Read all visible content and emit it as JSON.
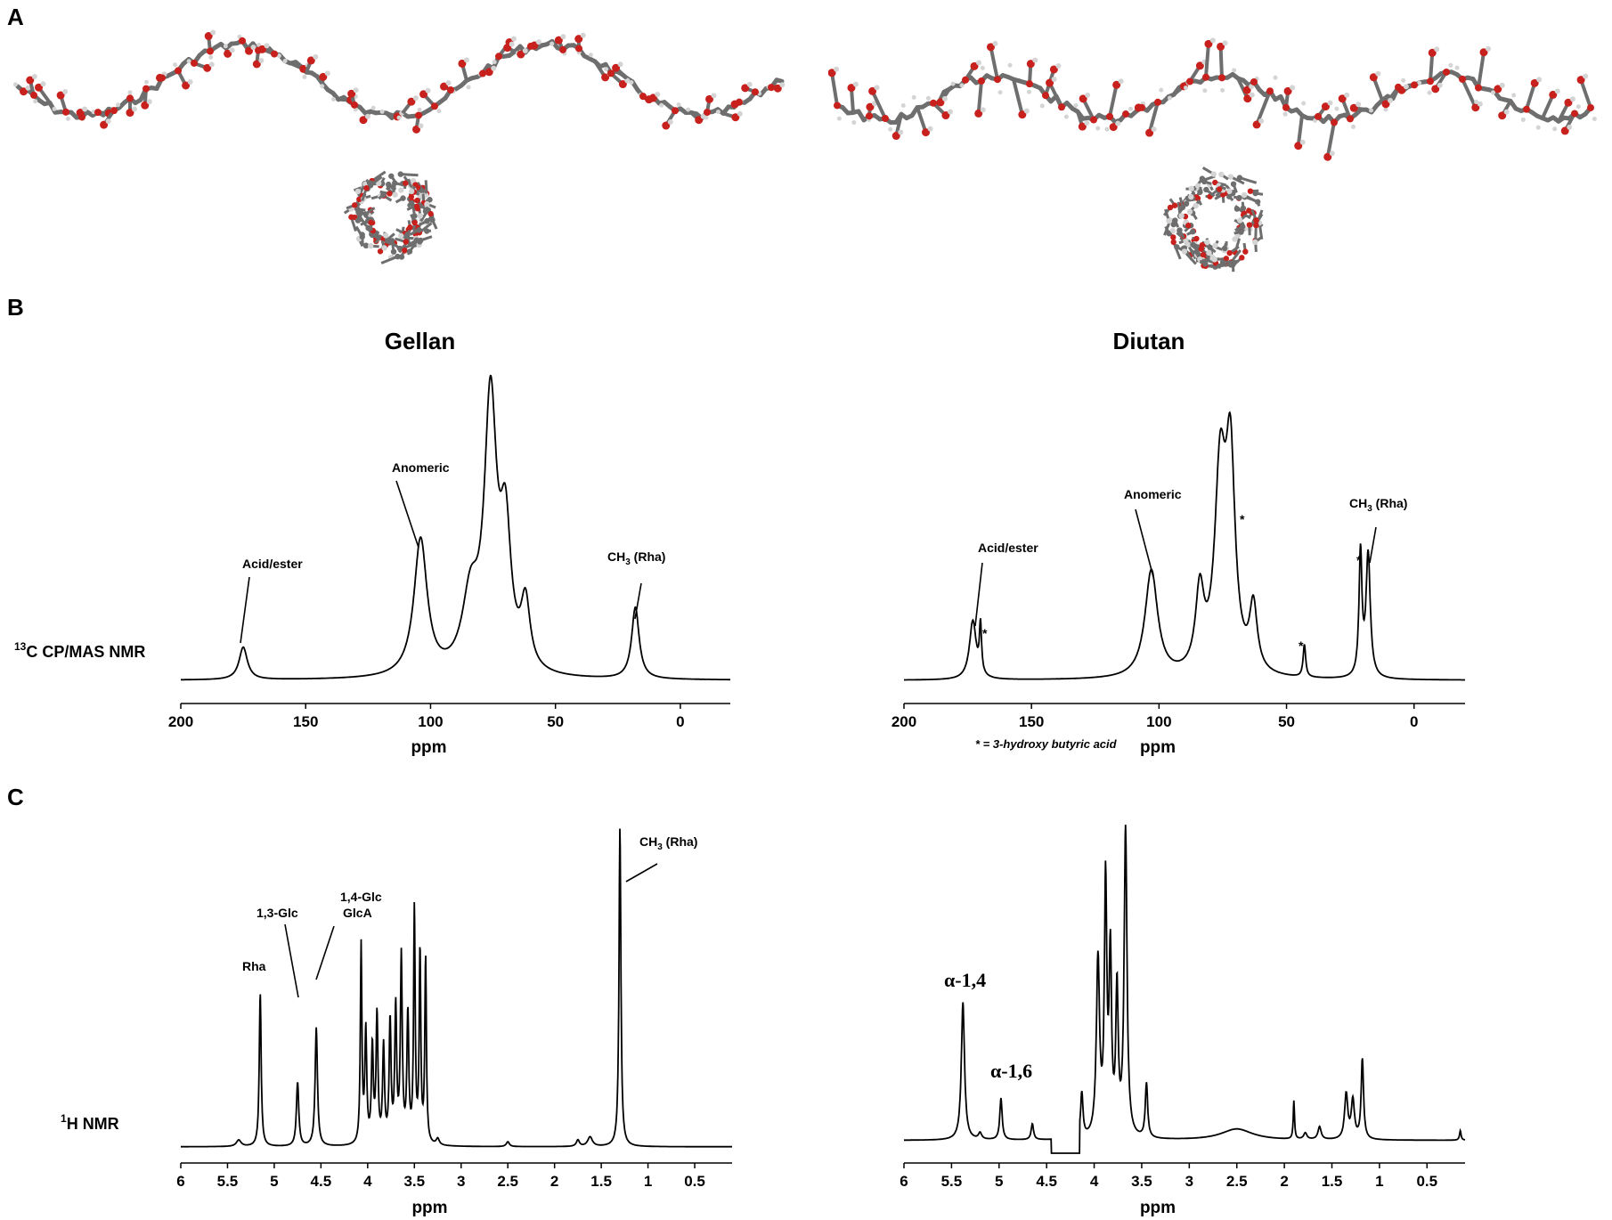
{
  "panels": {
    "a": "A",
    "b": "B",
    "c": "C"
  },
  "colors": {
    "line": "#000000",
    "oxygen": "#c8201c",
    "carbon": "#6e6e6e",
    "hydrogen": "#d4d4d4"
  },
  "chart_data": [
    {
      "id": "gellan-13c",
      "type": "line",
      "title": "Gellan",
      "row_label": "C CP/MAS NMR",
      "row_label_sup": "13",
      "xlabel": "ppm",
      "xlim": [
        200,
        -20
      ],
      "x_reversed": true,
      "ticks": [
        200,
        150,
        100,
        50,
        0
      ],
      "tick_labels": [
        "200",
        "150",
        "100",
        "50",
        "0"
      ],
      "grid": false,
      "baseline": 0.03,
      "peaks": [
        {
          "x": 175,
          "h": 0.1,
          "w": 2.0
        },
        {
          "x": 104,
          "h": 0.42,
          "w": 3.2
        },
        {
          "x": 84,
          "h": 0.22,
          "w": 4.0
        },
        {
          "x": 76,
          "h": 0.82,
          "w": 3.0
        },
        {
          "x": 70,
          "h": 0.4,
          "w": 2.6
        },
        {
          "x": 62,
          "h": 0.2,
          "w": 2.2
        },
        {
          "x": 18,
          "h": 0.22,
          "w": 1.8
        }
      ],
      "annotations": [
        {
          "text": "Anomeric",
          "peak_x": 104
        },
        {
          "text": "Acid/ester",
          "peak_x": 175
        },
        {
          "text": "CH",
          "sub": "3",
          "suffix": " (Rha)",
          "peak_x": 18
        }
      ]
    },
    {
      "id": "diutan-13c",
      "type": "line",
      "title": "Diutan",
      "xlabel": "ppm",
      "xlim": [
        200,
        -20
      ],
      "x_reversed": true,
      "ticks": [
        200,
        150,
        100,
        50,
        0
      ],
      "tick_labels": [
        "200",
        "150",
        "100",
        "50",
        "0"
      ],
      "grid": false,
      "baseline": 0.03,
      "footnote": "* = 3-hydroxy butyric acid",
      "peaks": [
        {
          "x": 173,
          "h": 0.18,
          "w": 1.6
        },
        {
          "x": 170,
          "h": 0.15,
          "w": 0.5
        },
        {
          "x": 103,
          "h": 0.33,
          "w": 3.0
        },
        {
          "x": 84,
          "h": 0.24,
          "w": 2.0
        },
        {
          "x": 76,
          "h": 0.6,
          "w": 2.6
        },
        {
          "x": 72,
          "h": 0.62,
          "w": 2.2
        },
        {
          "x": 63,
          "h": 0.2,
          "w": 1.8
        },
        {
          "x": 43,
          "h": 0.1,
          "w": 0.6
        },
        {
          "x": 21,
          "h": 0.38,
          "w": 0.7
        },
        {
          "x": 18,
          "h": 0.38,
          "w": 1.0
        }
      ],
      "annotations": [
        {
          "text": "Anomeric",
          "peak_x": 103
        },
        {
          "text": "Acid/ester",
          "peak_x": 173
        },
        {
          "text": "CH",
          "sub": "3",
          "suffix": " (Rha)",
          "peak_x": 18
        },
        {
          "text": "*",
          "peak_x": 170
        },
        {
          "text": "*",
          "peak_x": 69
        },
        {
          "text": "*",
          "peak_x": 43
        },
        {
          "text": "*",
          "peak_x": 21
        }
      ]
    },
    {
      "id": "gellan-1h",
      "type": "line",
      "row_label": "H NMR",
      "row_label_sup": "1",
      "xlabel": "ppm",
      "xlim": [
        6,
        0.1
      ],
      "x_reversed": true,
      "ticks": [
        6,
        5.5,
        5,
        4.5,
        4,
        3.5,
        3,
        2.5,
        2,
        1.5,
        1,
        0.5
      ],
      "tick_labels": [
        "6",
        "5.5",
        "5",
        "4.5",
        "4",
        "3.5",
        "3",
        "2.5",
        "2",
        "1.5",
        "1",
        "0.5"
      ],
      "grid": false,
      "baseline": 0.02,
      "peaks": [
        {
          "x": 5.38,
          "h": 0.02,
          "w": 0.03
        },
        {
          "x": 5.15,
          "h": 0.48,
          "w": 0.012
        },
        {
          "x": 4.75,
          "h": 0.2,
          "w": 0.015
        },
        {
          "x": 4.55,
          "h": 0.37,
          "w": 0.015
        },
        {
          "x": 4.07,
          "h": 0.62,
          "w": 0.01
        },
        {
          "x": 4.02,
          "h": 0.35,
          "w": 0.012
        },
        {
          "x": 3.95,
          "h": 0.3,
          "w": 0.012
        },
        {
          "x": 3.9,
          "h": 0.4,
          "w": 0.012
        },
        {
          "x": 3.83,
          "h": 0.3,
          "w": 0.012
        },
        {
          "x": 3.76,
          "h": 0.38,
          "w": 0.012
        },
        {
          "x": 3.7,
          "h": 0.42,
          "w": 0.012
        },
        {
          "x": 3.64,
          "h": 0.58,
          "w": 0.012
        },
        {
          "x": 3.57,
          "h": 0.4,
          "w": 0.012
        },
        {
          "x": 3.5,
          "h": 0.73,
          "w": 0.01
        },
        {
          "x": 3.44,
          "h": 0.6,
          "w": 0.01
        },
        {
          "x": 3.38,
          "h": 0.58,
          "w": 0.01
        },
        {
          "x": 3.25,
          "h": 0.02,
          "w": 0.02
        },
        {
          "x": 2.5,
          "h": 0.015,
          "w": 0.02
        },
        {
          "x": 1.75,
          "h": 0.02,
          "w": 0.02
        },
        {
          "x": 1.62,
          "h": 0.03,
          "w": 0.03
        },
        {
          "x": 1.3,
          "h": 1.0,
          "w": 0.012
        }
      ],
      "annotations": [
        {
          "text": "Rha",
          "peak_x": 5.15
        },
        {
          "text": "1,3-Glc",
          "peak_x": 4.75
        },
        {
          "text": "1,4-Glc",
          "peak_x": 4.55
        },
        {
          "text": "GlcA",
          "peak_x": 4.55
        },
        {
          "text": "CH",
          "sub": "3",
          "suffix": " (Rha)",
          "peak_x": 1.3
        }
      ]
    },
    {
      "id": "diutan-1h",
      "type": "line",
      "xlabel": "ppm",
      "xlim": [
        6,
        0.1
      ],
      "x_reversed": true,
      "ticks": [
        6,
        5.5,
        5,
        4.5,
        4,
        3.5,
        3,
        2.5,
        2,
        1.5,
        1,
        0.5
      ],
      "tick_labels": [
        "6",
        "5.5",
        "5",
        "4.5",
        "4",
        "3.5",
        "3",
        "2.5",
        "2",
        "1.5",
        "1",
        "0.5"
      ],
      "grid": false,
      "baseline": 0.04,
      "solvent_gap": [
        4.45,
        4.15
      ],
      "peaks": [
        {
          "x": 5.38,
          "h": 0.43,
          "w": 0.02
        },
        {
          "x": 5.2,
          "h": 0.02,
          "w": 0.02
        },
        {
          "x": 4.98,
          "h": 0.13,
          "w": 0.015
        },
        {
          "x": 4.65,
          "h": 0.05,
          "w": 0.015
        },
        {
          "x": 4.13,
          "h": 0.14,
          "w": 0.015
        },
        {
          "x": 3.96,
          "h": 0.55,
          "w": 0.02
        },
        {
          "x": 3.88,
          "h": 0.78,
          "w": 0.015
        },
        {
          "x": 3.83,
          "h": 0.55,
          "w": 0.015
        },
        {
          "x": 3.76,
          "h": 0.45,
          "w": 0.015
        },
        {
          "x": 3.67,
          "h": 0.96,
          "w": 0.018
        },
        {
          "x": 3.45,
          "h": 0.17,
          "w": 0.015
        },
        {
          "x": 2.5,
          "h": 0.035,
          "w": 0.2
        },
        {
          "x": 1.9,
          "h": 0.12,
          "w": 0.008
        },
        {
          "x": 1.78,
          "h": 0.02,
          "w": 0.02
        },
        {
          "x": 1.63,
          "h": 0.04,
          "w": 0.02
        },
        {
          "x": 1.35,
          "h": 0.14,
          "w": 0.02
        },
        {
          "x": 1.28,
          "h": 0.12,
          "w": 0.02
        },
        {
          "x": 1.18,
          "h": 0.25,
          "w": 0.015
        },
        {
          "x": 0.15,
          "h": 0.03,
          "w": 0.01
        }
      ],
      "annotations": [
        {
          "text": "α-1,4",
          "peak_x": 5.38
        },
        {
          "text": "α-1,6",
          "peak_x": 4.98
        }
      ]
    }
  ]
}
